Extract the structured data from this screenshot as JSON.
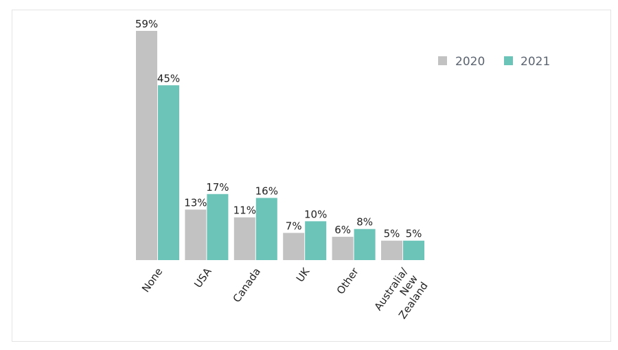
{
  "chart_data": {
    "type": "bar",
    "title": "",
    "xlabel": "",
    "ylabel": "",
    "ylim": [
      0,
      59
    ],
    "grid": false,
    "legend_position": "top-right",
    "categories": [
      [
        "None"
      ],
      [
        "USA"
      ],
      [
        "Canada"
      ],
      [
        "UK"
      ],
      [
        "Other"
      ],
      [
        "Australia/",
        "New",
        "Zealand"
      ]
    ],
    "series": [
      {
        "name": "2020",
        "color": "#c2c2c2",
        "values": [
          59,
          13,
          11,
          7,
          6,
          5
        ],
        "labels": [
          "59%",
          "13%",
          "11%",
          "7%",
          "6%",
          "5%"
        ]
      },
      {
        "name": "2021",
        "color": "#6cc3b8",
        "values": [
          45,
          17,
          16,
          10,
          8,
          5
        ],
        "labels": [
          "45%",
          "17%",
          "16%",
          "10%",
          "8%",
          "5%"
        ]
      }
    ]
  }
}
